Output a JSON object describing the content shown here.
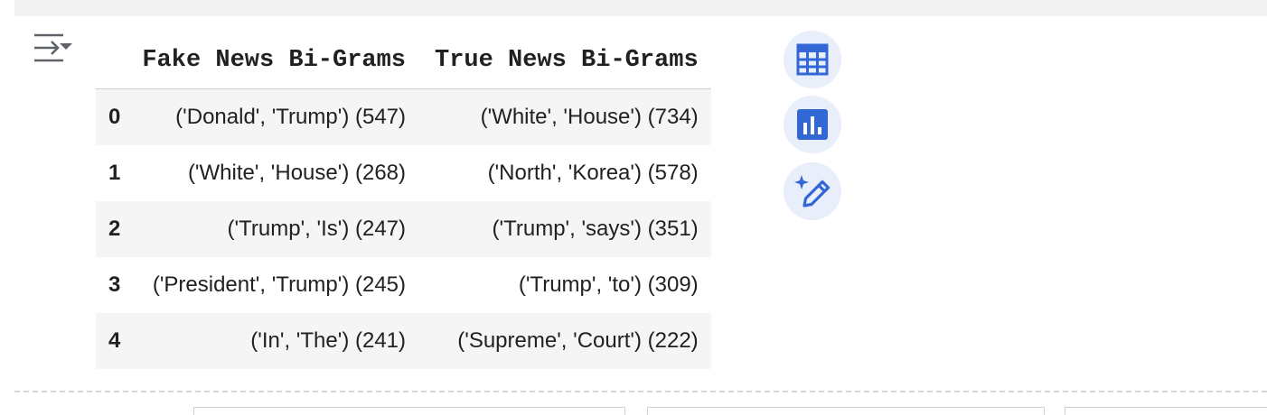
{
  "table": {
    "columns": [
      "Fake News Bi-Grams",
      "True News Bi-Grams"
    ],
    "rows": [
      {
        "index": "0",
        "fake": "('Donald', 'Trump') (547)",
        "true": "('White', 'House') (734)"
      },
      {
        "index": "1",
        "fake": "('White', 'House') (268)",
        "true": "('North', 'Korea') (578)"
      },
      {
        "index": "2",
        "fake": "('Trump', 'Is') (247)",
        "true": "('Trump', 'says') (351)"
      },
      {
        "index": "3",
        "fake": "('President', 'Trump') (245)",
        "true": "('Trump', 'to') (309)"
      },
      {
        "index": "4",
        "fake": "('In', 'The') (241)",
        "true": "('Supreme', 'Court') (222)"
      }
    ]
  },
  "icons": {
    "output_toggle": "output-toggle-icon",
    "table_view": "table-icon",
    "chart_suggest": "bar-chart-icon",
    "magic_edit": "magic-wand-pen-icon"
  },
  "colors": {
    "accent": "#3367d6",
    "button_bg": "#e8eefa",
    "stripe": "#f5f5f5"
  }
}
